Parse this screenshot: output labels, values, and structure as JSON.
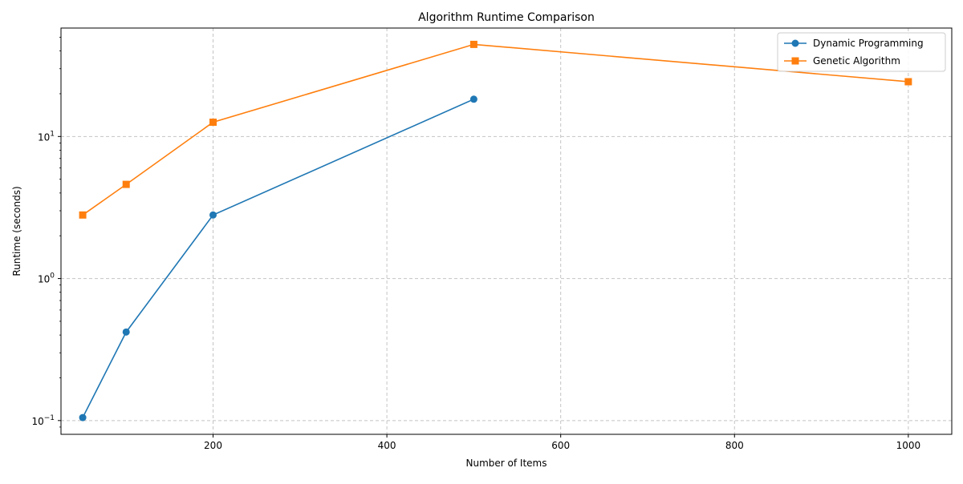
{
  "chart_data": {
    "type": "line",
    "title": "Algorithm Runtime Comparison",
    "xlabel": "Number of Items",
    "ylabel": "Runtime (seconds)",
    "xlim": [
      25,
      1050
    ],
    "ylim": [
      0.08,
      58
    ],
    "yscale": "log",
    "grid": true,
    "legend_position": "top-right",
    "x_ticks": [
      200,
      400,
      600,
      800,
      1000
    ],
    "x_tick_labels": [
      "200",
      "400",
      "600",
      "800",
      "1000"
    ],
    "y_ticks": [
      {
        "value": 0.1,
        "base": "10",
        "exp": "−1"
      },
      {
        "value": 1,
        "base": "10",
        "exp": "0"
      },
      {
        "value": 10,
        "base": "10",
        "exp": "1"
      }
    ],
    "series": [
      {
        "name": "Dynamic Programming",
        "color": "#1f77b4",
        "marker": "circle",
        "x": [
          50,
          100,
          200,
          500
        ],
        "y": [
          0.105,
          0.42,
          2.8,
          18.3
        ]
      },
      {
        "name": "Genetic Algorithm",
        "color": "#ff7f0e",
        "marker": "square",
        "x": [
          50,
          100,
          200,
          500,
          1000
        ],
        "y": [
          2.8,
          4.6,
          12.6,
          44.5,
          24.3
        ]
      }
    ]
  }
}
